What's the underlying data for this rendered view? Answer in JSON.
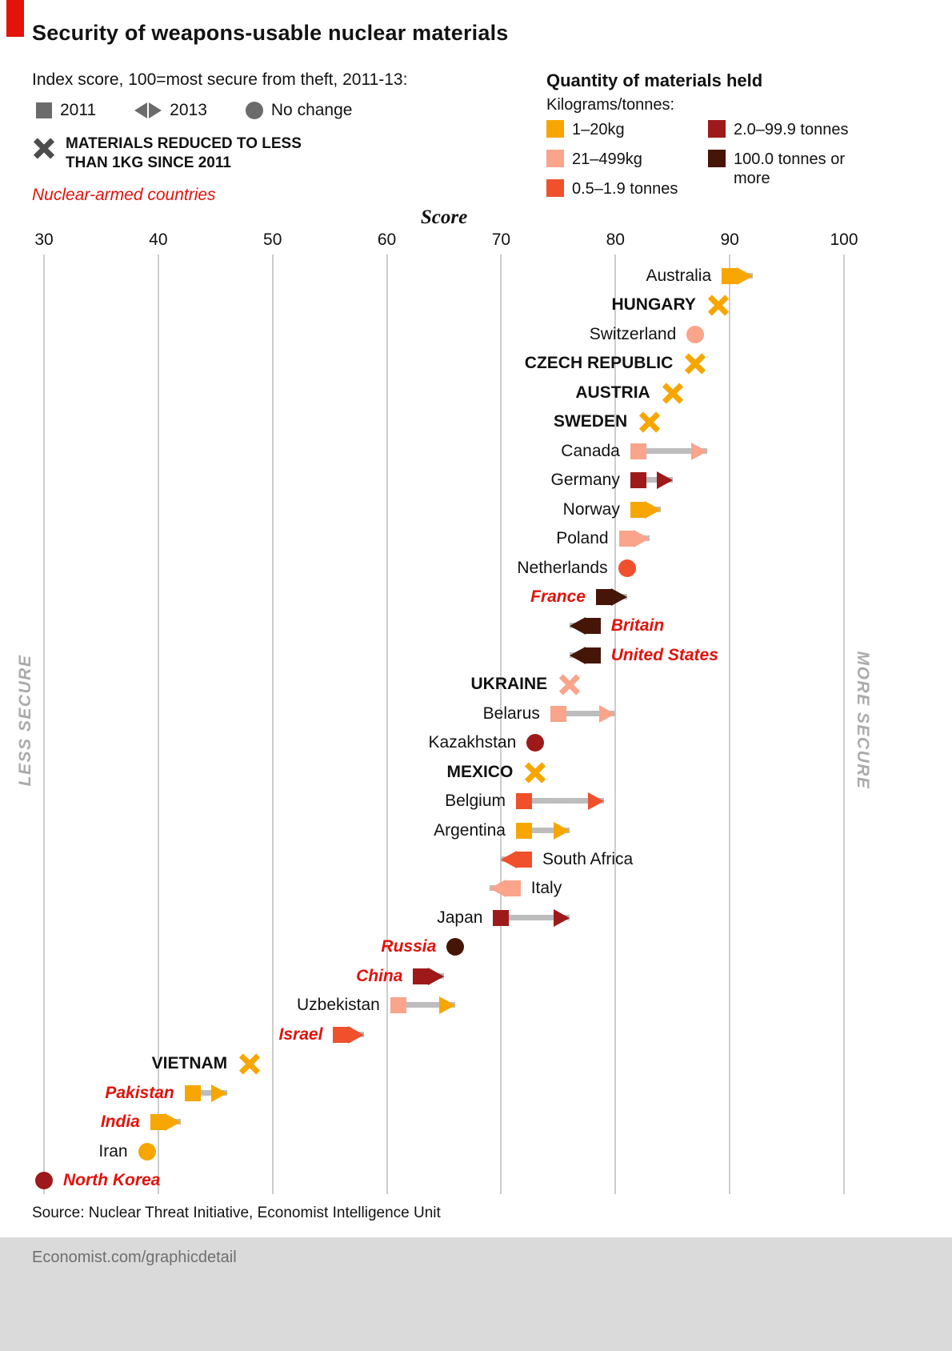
{
  "header": {
    "title": "Security of weapons-usable nuclear materials"
  },
  "legend": {
    "index_title": "Index score, 100=most secure from theft, 2011-13:",
    "items": [
      {
        "label": "2011",
        "glyph": "square"
      },
      {
        "label": "2013",
        "glyph": "arrow-pair"
      },
      {
        "label": "No change",
        "glyph": "circle"
      }
    ],
    "reduced_note": "MATERIALS REDUCED TO LESS\nTHAN 1KG SINCE 2011",
    "nuclear_armed_label": "Nuclear-armed countries"
  },
  "quantity_legend": {
    "title": "Quantity of materials held",
    "subtitle": "Kilograms/tonnes:",
    "items": [
      {
        "label": "1–20kg",
        "color": "#F7A600"
      },
      {
        "label": "21–499kg",
        "color": "#F9A48B"
      },
      {
        "label": "0.5–1.9 tonnes",
        "color": "#F0502C"
      },
      {
        "label": "2.0–99.9 tonnes",
        "color": "#9E1A1A"
      },
      {
        "label": "100.0 tonnes or more",
        "color": "#451508"
      }
    ]
  },
  "axis": {
    "label": "Score",
    "min": 30,
    "max": 100,
    "ticks": [
      30,
      40,
      50,
      60,
      70,
      80,
      90,
      100
    ]
  },
  "side_labels": {
    "left": "LESS SECURE",
    "right": "MORE SECURE"
  },
  "colors": {
    "accent_red": "#E3120B",
    "yellow_1_20kg": "#F7A600",
    "salmon_21_499kg": "#F9A48B",
    "orange_05_19t": "#F0502C",
    "dark_red_2_99t": "#9E1A1A",
    "dark_brown_100t": "#451508",
    "no_change_gray": "#6B6B6B",
    "connector_gray": "#BDBDBD"
  },
  "chart_data": {
    "type": "scatter",
    "title": "Security of weapons-usable nuclear materials",
    "xlabel": "Score",
    "xlim": [
      30,
      100
    ],
    "grid": true,
    "rows": [
      {
        "country": "Australia",
        "style": "normal",
        "side": "left",
        "marker": "change",
        "score_2011": 90,
        "score_2013": 92,
        "color_2011": "#F7A600",
        "color_2013": "#F7A600"
      },
      {
        "country": "HUNGARY",
        "style": "reduced",
        "side": "left",
        "marker": "reduced",
        "score": 89,
        "color": "#F7A600"
      },
      {
        "country": "Switzerland",
        "style": "normal",
        "side": "left",
        "marker": "no_change",
        "score": 87,
        "color": "#F9A48B"
      },
      {
        "country": "CZECH REPUBLIC",
        "style": "reduced",
        "side": "left",
        "marker": "reduced",
        "score": 87,
        "color": "#F7A600"
      },
      {
        "country": "AUSTRIA",
        "style": "reduced",
        "side": "left",
        "marker": "reduced",
        "score": 85,
        "color": "#F7A600"
      },
      {
        "country": "SWEDEN",
        "style": "reduced",
        "side": "left",
        "marker": "reduced",
        "score": 83,
        "color": "#F7A600"
      },
      {
        "country": "Canada",
        "style": "normal",
        "side": "left",
        "marker": "change",
        "score_2011": 82,
        "score_2013": 88,
        "color_2011": "#F9A48B",
        "color_2013": "#F9A48B"
      },
      {
        "country": "Germany",
        "style": "normal",
        "side": "left",
        "marker": "change",
        "score_2011": 82,
        "score_2013": 85,
        "color_2011": "#9E1A1A",
        "color_2013": "#9E1A1A"
      },
      {
        "country": "Norway",
        "style": "normal",
        "side": "left",
        "marker": "change",
        "score_2011": 82,
        "score_2013": 84,
        "color_2011": "#F7A600",
        "color_2013": "#F7A600"
      },
      {
        "country": "Poland",
        "style": "normal",
        "side": "left",
        "marker": "change",
        "score_2011": 81,
        "score_2013": 83,
        "color_2011": "#F9A48B",
        "color_2013": "#F9A48B"
      },
      {
        "country": "Netherlands",
        "style": "normal",
        "side": "left",
        "marker": "no_change",
        "score": 81,
        "color": "#F0502C"
      },
      {
        "country": "France",
        "style": "nuclear",
        "side": "left",
        "marker": "change",
        "score_2011": 79,
        "score_2013": 81,
        "color_2011": "#451508",
        "color_2013": "#451508"
      },
      {
        "country": "Britain",
        "style": "nuclear",
        "side": "right",
        "marker": "change",
        "score_2011": 78,
        "score_2013": 76,
        "color_2011": "#451508",
        "color_2013": "#451508"
      },
      {
        "country": "United States",
        "style": "nuclear",
        "side": "right",
        "marker": "change",
        "score_2011": 78,
        "score_2013": 76,
        "color_2011": "#451508",
        "color_2013": "#451508"
      },
      {
        "country": "UKRAINE",
        "style": "reduced",
        "side": "left",
        "marker": "reduced",
        "score": 76,
        "color": "#F9A48B"
      },
      {
        "country": "Belarus",
        "style": "normal",
        "side": "left",
        "marker": "change",
        "score_2011": 75,
        "score_2013": 80,
        "color_2011": "#F9A48B",
        "color_2013": "#F9A48B"
      },
      {
        "country": "Kazakhstan",
        "style": "normal",
        "side": "left",
        "marker": "no_change",
        "score": 73,
        "color": "#9E1A1A"
      },
      {
        "country": "MEXICO",
        "style": "reduced",
        "side": "left",
        "marker": "reduced",
        "score": 73,
        "color": "#F7A600"
      },
      {
        "country": "Belgium",
        "style": "normal",
        "side": "left",
        "marker": "change",
        "score_2011": 72,
        "score_2013": 79,
        "color_2011": "#F0502C",
        "color_2013": "#F0502C"
      },
      {
        "country": "Argentina",
        "style": "normal",
        "side": "left",
        "marker": "change",
        "score_2011": 72,
        "score_2013": 76,
        "color_2011": "#F7A600",
        "color_2013": "#F7A600"
      },
      {
        "country": "South Africa",
        "style": "normal",
        "side": "right",
        "marker": "change",
        "score_2011": 72,
        "score_2013": 70,
        "color_2011": "#F0502C",
        "color_2013": "#F0502C"
      },
      {
        "country": "Italy",
        "style": "normal",
        "side": "right",
        "marker": "change",
        "score_2011": 71,
        "score_2013": 69,
        "color_2011": "#F9A48B",
        "color_2013": "#F9A48B"
      },
      {
        "country": "Japan",
        "style": "normal",
        "side": "left",
        "marker": "change",
        "score_2011": 70,
        "score_2013": 76,
        "color_2011": "#9E1A1A",
        "color_2013": "#9E1A1A"
      },
      {
        "country": "Russia",
        "style": "nuclear",
        "side": "left",
        "marker": "no_change",
        "score": 66,
        "color": "#451508"
      },
      {
        "country": "China",
        "style": "nuclear",
        "side": "left",
        "marker": "change",
        "score_2011": 63,
        "score_2013": 65,
        "color_2011": "#9E1A1A",
        "color_2013": "#9E1A1A"
      },
      {
        "country": "Uzbekistan",
        "style": "normal",
        "side": "left",
        "marker": "change",
        "score_2011": 61,
        "score_2013": 66,
        "color_2011": "#F9A48B",
        "color_2013": "#F7A600"
      },
      {
        "country": "Israel",
        "style": "nuclear",
        "side": "left",
        "marker": "change",
        "score_2011": 56,
        "score_2013": 58,
        "color_2011": "#F0502C",
        "color_2013": "#F0502C"
      },
      {
        "country": "VIETNAM",
        "style": "reduced",
        "side": "left",
        "marker": "reduced",
        "score": 48,
        "color": "#F7A600"
      },
      {
        "country": "Pakistan",
        "style": "nuclear",
        "side": "left",
        "marker": "change",
        "score_2011": 43,
        "score_2013": 46,
        "color_2011": "#F7A600",
        "color_2013": "#F7A600"
      },
      {
        "country": "India",
        "style": "nuclear",
        "side": "left",
        "marker": "change",
        "score_2011": 40,
        "score_2013": 42,
        "color_2011": "#F7A600",
        "color_2013": "#F7A600"
      },
      {
        "country": "Iran",
        "style": "normal",
        "side": "left",
        "marker": "no_change",
        "score": 39,
        "color": "#F7A600"
      },
      {
        "country": "North Korea",
        "style": "nuclear",
        "side": "right",
        "marker": "no_change",
        "score": 30,
        "color": "#9E1A1A"
      }
    ]
  },
  "source": "Source: Nuclear Threat Initiative, Economist Intelligence Unit",
  "footer": "Economist.com/graphicdetail"
}
